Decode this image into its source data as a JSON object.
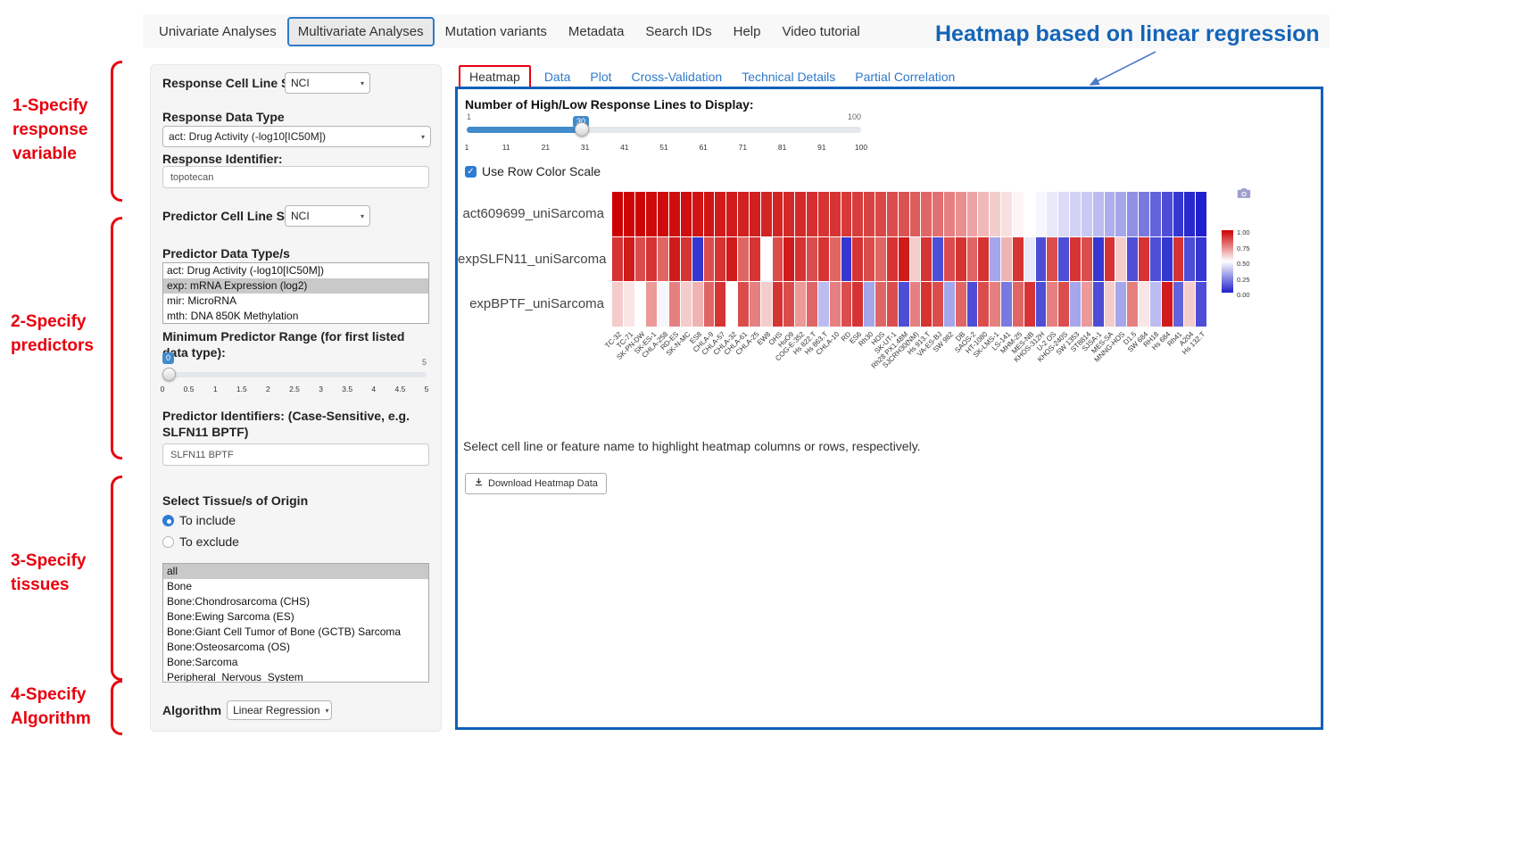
{
  "nav": {
    "tabs": [
      {
        "label": "Univariate Analyses",
        "active": false
      },
      {
        "label": "Multivariate Analyses",
        "active": true
      },
      {
        "label": "Mutation variants",
        "active": false
      },
      {
        "label": "Metadata",
        "active": false
      },
      {
        "label": "Search IDs",
        "active": false
      },
      {
        "label": "Help",
        "active": false
      },
      {
        "label": "Video tutorial",
        "active": false
      }
    ]
  },
  "annotations": {
    "headline": "Heatmap based on linear regression",
    "steps": [
      {
        "text": "1-Specify\nresponse\nvariable"
      },
      {
        "text": "2-Specify\npredictors"
      },
      {
        "text": "3-Specify\ntissues"
      },
      {
        "text": "4-Specify\nAlgorithm"
      }
    ],
    "red": "#e8000d",
    "blue": "#1464b8"
  },
  "sidebar": {
    "response_cell_line_set": {
      "label": "Response Cell Line Set",
      "value": "NCI"
    },
    "response_data_type": {
      "label": "Response Data Type",
      "value": "act: Drug Activity (-log10[IC50M])"
    },
    "response_identifier": {
      "label": "Response Identifier:",
      "value": "topotecan"
    },
    "predictor_cell_line_set": {
      "label": "Predictor Cell Line Set",
      "value": "NCI"
    },
    "predictor_data_types": {
      "label": "Predictor Data Type/s",
      "options": [
        "act: Drug Activity (-log10[IC50M])",
        "exp: mRNA Expression (log2)",
        "mir: MicroRNA",
        "mth: DNA 850K Methylation"
      ],
      "selected": "exp: mRNA Expression (log2)"
    },
    "min_predictor_range": {
      "label": "Minimum Predictor Range (for first listed data type):",
      "value": "0",
      "min": "0",
      "max": "5",
      "ticks": [
        "0",
        "0.5",
        "1",
        "1.5",
        "2",
        "2.5",
        "3",
        "3.5",
        "4",
        "4.5",
        "5"
      ]
    },
    "predictor_identifiers": {
      "label": "Predictor Identifiers: (Case-Sensitive, e.g. SLFN11 BPTF)",
      "value": "SLFN11 BPTF"
    },
    "tissues": {
      "label": "Select Tissue/s of Origin",
      "radios": [
        {
          "label": "To include",
          "selected": true
        },
        {
          "label": "To exclude",
          "selected": false
        }
      ],
      "options": [
        "all",
        "Bone",
        "Bone:Chondrosarcoma (CHS)",
        "Bone:Ewing Sarcoma (ES)",
        "Bone:Giant Cell Tumor of Bone (GCTB) Sarcoma",
        "Bone:Osteosarcoma (OS)",
        "Bone:Sarcoma",
        "Peripheral_Nervous_System"
      ],
      "selected": "all"
    },
    "algorithm": {
      "label": "Algorithm",
      "value": "Linear Regression"
    }
  },
  "main": {
    "tabs": [
      {
        "label": "Heatmap",
        "active": true
      },
      {
        "label": "Data",
        "active": false
      },
      {
        "label": "Plot",
        "active": false
      },
      {
        "label": "Cross-Validation",
        "active": false
      },
      {
        "label": "Technical Details",
        "active": false
      },
      {
        "label": "Partial Correlation",
        "active": false
      }
    ],
    "lines_slider": {
      "label": "Number of High/Low Response Lines to Display:",
      "value": "30",
      "min": "1",
      "max": "100",
      "ticks": [
        "1",
        "11",
        "21",
        "31",
        "41",
        "51",
        "61",
        "71",
        "81",
        "91",
        "100"
      ]
    },
    "row_color_scale": {
      "label": "Use Row Color Scale",
      "checked": true
    },
    "hint": "Select cell line or feature name to highlight heatmap columns or rows, respectively.",
    "download_button": "Download Heatmap Data"
  },
  "chart_data": {
    "type": "heatmap",
    "title": "",
    "rows": [
      "act609699_uniSarcoma",
      "expSLFN11_uniSarcoma",
      "expBPTF_uniSarcoma"
    ],
    "columns": [
      "TC-32",
      "TC-71",
      "SK-PN-DW",
      "SK-ES-1",
      "CHLA-258",
      "RD-ES",
      "SK-N-MC",
      "ES8",
      "CHLA-9",
      "CHLA-57",
      "CHLA-32",
      "CHLA-61",
      "CHLA-25",
      "EW8",
      "OHS",
      "HuO9",
      "COG-E-352",
      "Hs 822.T",
      "Hs 863.T",
      "CHLA-10",
      "RD",
      "ES6",
      "Rh30",
      "HOS",
      "SK-UT-1",
      "Rh28 PX1.48M",
      "SJCRH30(NM)",
      "Hs 913.T",
      "VA-ES-BJ",
      "SW 982",
      "DB",
      "SAOS-2",
      "HT-1080",
      "SK-LMS-1",
      "LS-141",
      "MHM-25",
      "MES-NB",
      "KHOS-312H",
      "U-2 OS",
      "KHOS-240S",
      "SW 1353",
      "ST8814",
      "SJSA-1",
      "MES-SA",
      "MNNG-HOS",
      "D1.5",
      "SW 684",
      "RH18",
      "Hs 684",
      "Rh41",
      "A204",
      "Hs 132.T"
    ],
    "values": [
      [
        1,
        0.99,
        0.99,
        0.98,
        0.98,
        0.97,
        0.97,
        0.96,
        0.96,
        0.95,
        0.95,
        0.94,
        0.94,
        0.93,
        0.93,
        0.92,
        0.92,
        0.91,
        0.9,
        0.9,
        0.89,
        0.88,
        0.87,
        0.86,
        0.85,
        0.84,
        0.82,
        0.8,
        0.78,
        0.75,
        0.72,
        0.68,
        0.64,
        0.6,
        0.56,
        0.52,
        0.5,
        0.48,
        0.45,
        0.42,
        0.4,
        0.38,
        0.35,
        0.32,
        0.3,
        0.25,
        0.2,
        0.15,
        0.1,
        0.05,
        0.02,
        0
      ],
      [
        0.9,
        0.95,
        0.85,
        0.9,
        0.8,
        0.95,
        0.9,
        0.05,
        0.85,
        0.9,
        0.95,
        0.8,
        0.9,
        0.5,
        0.85,
        0.95,
        0.9,
        0.85,
        0.9,
        0.8,
        0.05,
        0.9,
        0.85,
        0.8,
        0.9,
        0.95,
        0.6,
        0.9,
        0.1,
        0.85,
        0.9,
        0.8,
        0.9,
        0.3,
        0.65,
        0.9,
        0.45,
        0.1,
        0.85,
        0.1,
        0.9,
        0.85,
        0.05,
        0.9,
        0.6,
        0.1,
        0.9,
        0.1,
        0.05,
        0.9,
        0.1,
        0.05
      ],
      [
        0.6,
        0.55,
        0.5,
        0.7,
        0.48,
        0.75,
        0.6,
        0.65,
        0.8,
        0.9,
        0.5,
        0.85,
        0.75,
        0.6,
        0.9,
        0.85,
        0.7,
        0.8,
        0.35,
        0.75,
        0.85,
        0.9,
        0.3,
        0.8,
        0.85,
        0.1,
        0.75,
        0.9,
        0.85,
        0.3,
        0.8,
        0.1,
        0.85,
        0.75,
        0.2,
        0.8,
        0.9,
        0.1,
        0.75,
        0.85,
        0.3,
        0.7,
        0.1,
        0.6,
        0.3,
        0.75,
        0.55,
        0.35,
        0.95,
        0.15,
        0.6,
        0.1
      ]
    ],
    "colorscale": {
      "high_color": "#cc0000",
      "mid_color": "#ffffff",
      "low_color": "#2020cc",
      "ticks": [
        "1.00",
        "0.75",
        "0.50",
        "0.25",
        "0.00"
      ],
      "range": [
        0,
        1
      ]
    },
    "legend_position": "right"
  }
}
